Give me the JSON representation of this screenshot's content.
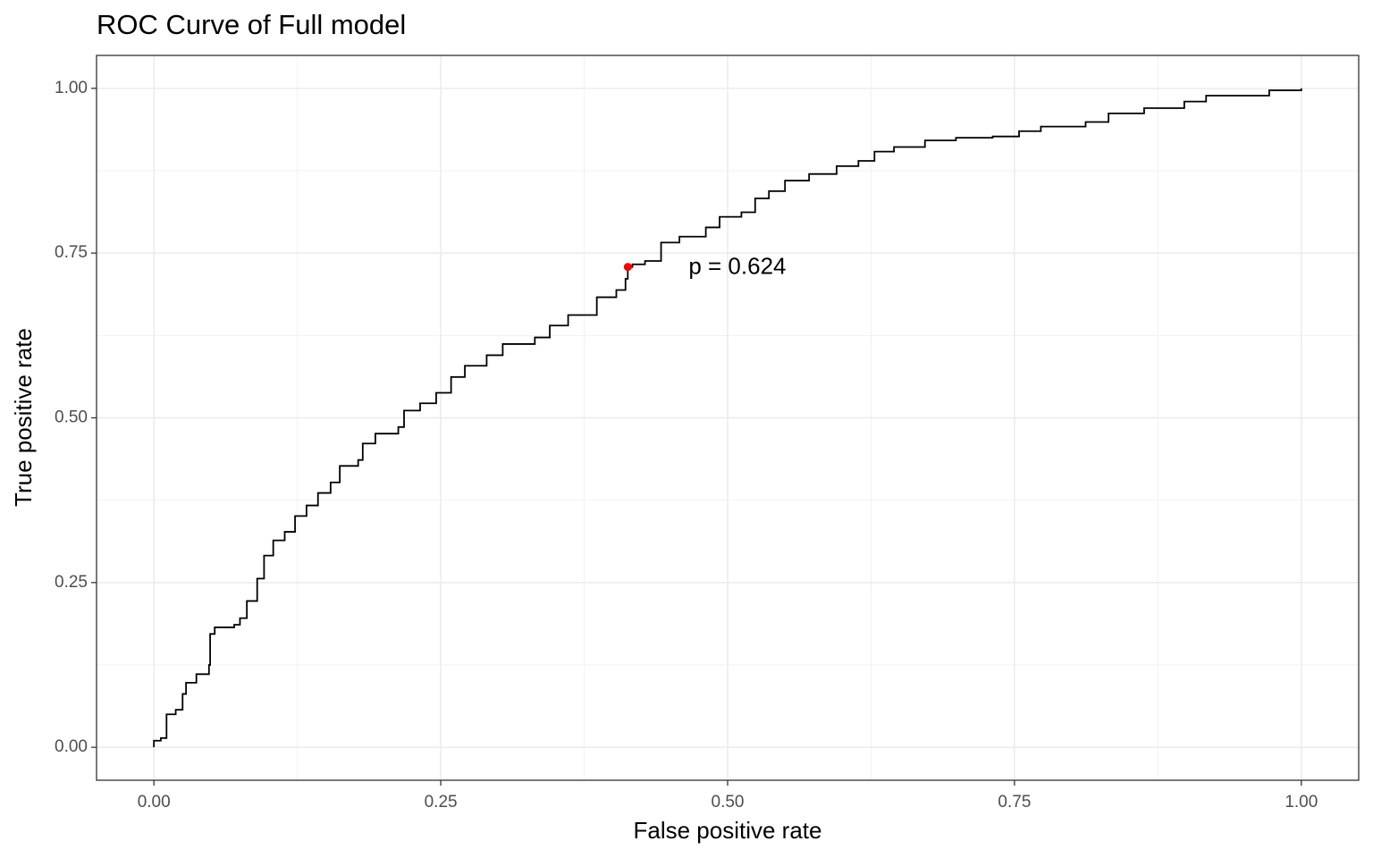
{
  "chart_data": {
    "type": "step",
    "title": "ROC Curve of Full model",
    "x_label": "False positive rate",
    "y_label": "True positive rate",
    "xlim": [
      -0.05,
      1.05
    ],
    "ylim": [
      -0.05,
      1.05
    ],
    "xticks": [
      {
        "value": 0,
        "label": "0.00"
      },
      0.25,
      {
        "value": 0.5,
        "label": "0.50"
      },
      0.75,
      {
        "value": 1,
        "label": "1.00"
      }
    ],
    "yticks": [
      {
        "value": 0,
        "label": "0.00"
      },
      0.25,
      {
        "value": 0.5,
        "label": "0.50"
      },
      0.75,
      {
        "value": 1,
        "label": "1.00"
      }
    ],
    "minor_xticks": [
      0.125,
      0.375,
      0.625,
      0.875
    ],
    "minor_yticks": [
      0.125,
      0.375,
      0.625,
      0.875
    ],
    "grid": true,
    "color": "#000000",
    "series": [
      {
        "x": [
          0,
          0,
          0.006,
          0.011,
          0.019,
          0.025,
          0.028,
          0.037,
          0.048,
          0.049,
          0.053,
          0.07,
          0.075,
          0.081,
          0.09,
          0.096,
          0.104,
          0.114,
          0.123,
          0.133,
          0.143,
          0.154,
          0.162,
          0.178,
          0.182,
          0.193,
          0.213,
          0.218,
          0.232,
          0.246,
          0.259,
          0.271,
          0.29,
          0.304,
          0.332,
          0.345,
          0.361,
          0.386,
          0.403,
          0.411,
          0.413,
          0.417,
          0.428,
          0.442,
          0.458,
          0.481,
          0.493,
          0.512,
          0.524,
          0.536,
          0.55,
          0.571,
          0.595,
          0.614,
          0.628,
          0.645,
          0.672,
          0.699,
          0.731,
          0.754,
          0.773,
          0.812,
          0.832,
          0.863,
          0.898,
          0.917,
          0.972,
          1.0
        ],
        "values": [
          0,
          0.01,
          0.014,
          0.05,
          0.057,
          0.081,
          0.098,
          0.111,
          0.125,
          0.172,
          0.182,
          0.186,
          0.196,
          0.222,
          0.256,
          0.291,
          0.314,
          0.327,
          0.351,
          0.367,
          0.386,
          0.402,
          0.427,
          0.436,
          0.461,
          0.476,
          0.486,
          0.511,
          0.522,
          0.538,
          0.562,
          0.579,
          0.595,
          0.612,
          0.622,
          0.64,
          0.656,
          0.683,
          0.694,
          0.711,
          0.729,
          0.733,
          0.738,
          0.766,
          0.775,
          0.789,
          0.805,
          0.812,
          0.833,
          0.844,
          0.86,
          0.87,
          0.882,
          0.89,
          0.904,
          0.911,
          0.921,
          0.925,
          0.927,
          0.935,
          0.942,
          0.949,
          0.962,
          0.97,
          0.98,
          0.989,
          0.997,
          1.0
        ]
      }
    ],
    "highlight": {
      "x": 0.413,
      "y": 0.729,
      "color": "#ff0000"
    },
    "annotations": [
      {
        "text": "p = 0.624",
        "x": 0.466,
        "y": 0.728
      }
    ]
  }
}
